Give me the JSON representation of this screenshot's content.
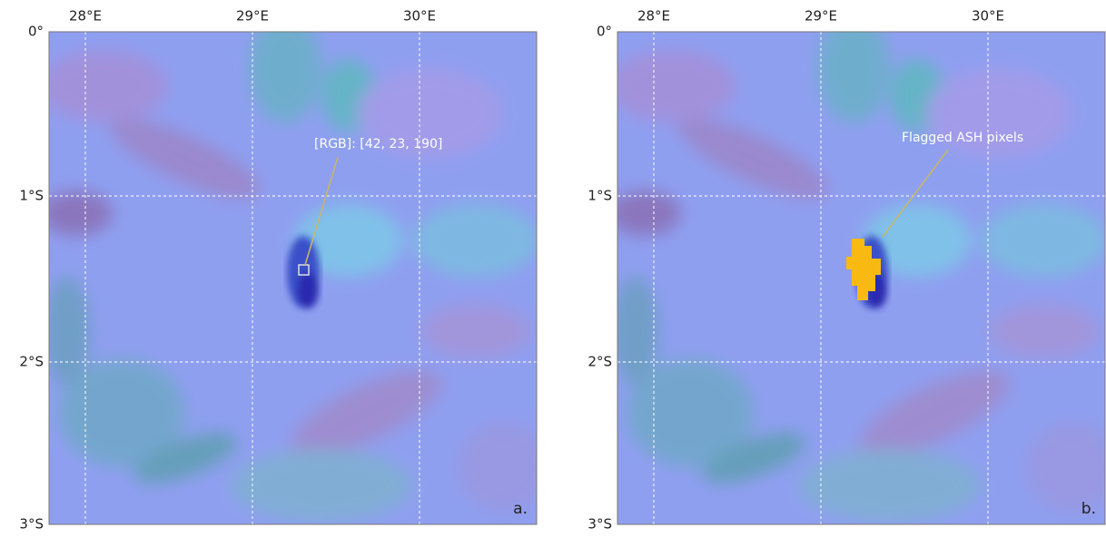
{
  "panels": [
    {
      "lon_labels": [
        "28°E",
        "29°E",
        "30°E"
      ],
      "lat_labels": [
        "0°",
        "1°S",
        "2°S",
        "3°S"
      ],
      "annotation": "[RGB]: [42, 23, 190]",
      "panel_label": "a."
    },
    {
      "lon_labels": [
        "28°E",
        "29°E",
        "30°E"
      ],
      "lat_labels": [
        "0°",
        "1°S",
        "2°S",
        "3°S"
      ],
      "annotation": "Flagged ASH pixels",
      "panel_label": "b."
    }
  ]
}
